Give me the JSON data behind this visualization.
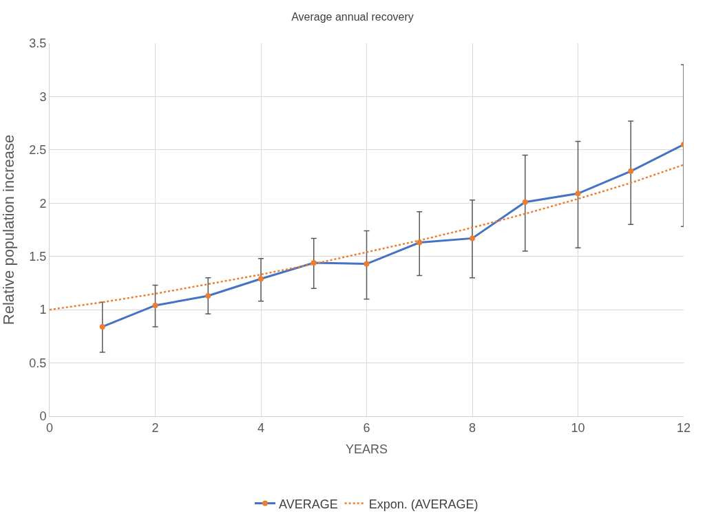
{
  "chart_data": {
    "type": "line",
    "title": "Average annual recovery",
    "xlabel": "YEARS",
    "ylabel": "Relative population increase",
    "xlim": [
      0,
      12
    ],
    "xticks": [
      0,
      2,
      4,
      6,
      8,
      10,
      12
    ],
    "ylim": [
      0,
      3.5
    ],
    "yticks": [
      0,
      0.5,
      1,
      1.5,
      2,
      2.5,
      3,
      3.5
    ],
    "grid": true,
    "legend": "bottom",
    "series": [
      {
        "name": "AVERAGE",
        "color": "#4472c4",
        "marker": "circle",
        "line_style": "solid",
        "colors": [
          "#ed7d31",
          "#ed7d31",
          "#ed7d31",
          "#ed7d31",
          "#ed7d31",
          "#ed7d31",
          "#ed7d31",
          "#ed7d31",
          "#ed7d31",
          "#ed7d31",
          "#ed7d31",
          "#ed7d31"
        ],
        "x": [
          1,
          2,
          3,
          4,
          5,
          6,
          7,
          8,
          9,
          10,
          11,
          12
        ],
        "values": [
          0.84,
          1.04,
          1.13,
          1.29,
          1.44,
          1.43,
          1.63,
          1.67,
          2.01,
          2.09,
          2.3,
          2.55
        ],
        "errors": [
          [
            0.6,
            1.07
          ],
          [
            0.84,
            1.23
          ],
          [
            0.96,
            1.3
          ],
          [
            1.08,
            1.48
          ],
          [
            1.2,
            1.67
          ],
          [
            1.1,
            1.74
          ],
          [
            1.32,
            1.92
          ],
          [
            1.3,
            2.03
          ],
          [
            1.55,
            2.45
          ],
          [
            1.58,
            2.58
          ],
          [
            1.8,
            2.77
          ],
          [
            1.78,
            3.3
          ]
        ]
      },
      {
        "name": "Expon. (AVERAGE)",
        "color": "#ed7d31",
        "marker": "none",
        "line_style": "dotted",
        "x": [
          0,
          1,
          2,
          3,
          4,
          5,
          6,
          7,
          8,
          9,
          10,
          11,
          12
        ],
        "values": [
          1.0,
          1.07,
          1.15,
          1.24,
          1.33,
          1.43,
          1.54,
          1.65,
          1.77,
          1.9,
          2.04,
          2.19,
          2.36
        ]
      }
    ]
  }
}
